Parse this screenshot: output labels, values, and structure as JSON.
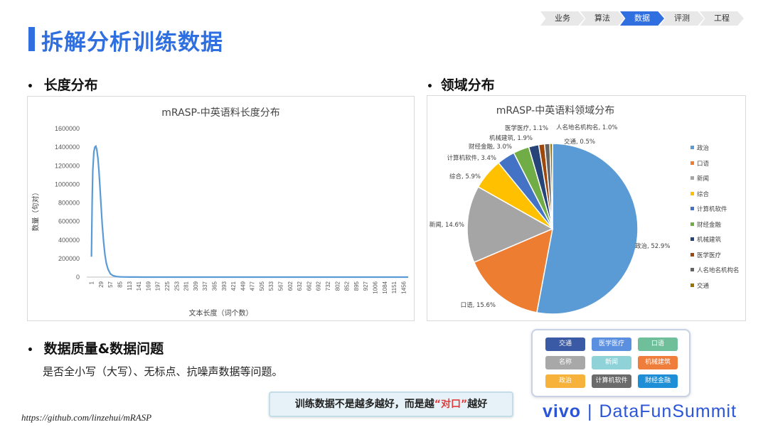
{
  "breadcrumbs": [
    {
      "label": "业务",
      "active": false
    },
    {
      "label": "算法",
      "active": false
    },
    {
      "label": "数据",
      "active": true
    },
    {
      "label": "评测",
      "active": false
    },
    {
      "label": "工程",
      "active": false
    }
  ],
  "title": "拆解分析训练数据",
  "sections": {
    "length": "长度分布",
    "domain": "领域分布",
    "quality": "数据质量&数据问题",
    "quality_body": "是否全小写（大写）、无标点、抗噪声数据等问题。"
  },
  "colors": {
    "accent": "#2f6fe0",
    "crumb_active": "#2f6fe0",
    "crumb_inactive": "#e8e8e8"
  },
  "chart_data": [
    {
      "type": "line",
      "title": "mRASP-中英语料长度分布",
      "xlabel": "文本长度（词个数）",
      "ylabel": "数量（句对）",
      "ylim": [
        0,
        1600000
      ],
      "yticks": [
        "1600000",
        "1400000",
        "1200000",
        "1000000",
        "800000",
        "600000",
        "400000",
        "200000",
        "0"
      ],
      "xticks": [
        "1",
        "29",
        "57",
        "85",
        "113",
        "141",
        "169",
        "197",
        "225",
        "253",
        "281",
        "309",
        "337",
        "365",
        "393",
        "421",
        "449",
        "477",
        "505",
        "533",
        "567",
        "602",
        "632",
        "662",
        "692",
        "732",
        "802",
        "852",
        "895",
        "927",
        "1006",
        "1084",
        "1151",
        "1456"
      ],
      "series": [
        {
          "x": [
            1,
            3,
            5,
            8,
            11,
            14,
            17,
            20,
            23,
            26,
            29,
            33,
            37,
            41,
            45,
            50,
            57,
            65,
            75,
            85,
            100,
            113,
            130,
            150,
            200,
            300,
            1456
          ],
          "values": [
            220000,
            820000,
            1150000,
            1350000,
            1400000,
            1410000,
            1370000,
            1280000,
            1150000,
            980000,
            800000,
            560000,
            380000,
            240000,
            150000,
            85000,
            35000,
            15000,
            6000,
            3000,
            1500,
            800,
            400,
            200,
            100,
            50,
            0
          ]
        }
      ]
    },
    {
      "type": "pie",
      "title": "mRASP-中英语料领域分布",
      "categories": [
        "政治",
        "口语",
        "新闻",
        "综合",
        "计算机软件",
        "财经金融",
        "机械建筑",
        "医学医疗",
        "人名地名机构名",
        "交通"
      ],
      "values": [
        52.9,
        15.6,
        14.6,
        5.9,
        3.4,
        3.0,
        1.9,
        1.1,
        1.0,
        0.5
      ],
      "labels": [
        "政治, 52.9%",
        "口语, 15.6%",
        "新闻, 14.6%",
        "综合, 5.9%",
        "计算机软件, 3.4%",
        "财经金融, 3.0%",
        "机械建筑, 1.9%",
        "医学医疗, 1.1%",
        "人名地名机构名, 1.0%",
        "交通, 0.5%"
      ],
      "colors": [
        "#5b9bd5",
        "#ed7d31",
        "#a5a5a5",
        "#ffc000",
        "#4472c4",
        "#70ad47",
        "#264478",
        "#9e480e",
        "#636363",
        "#997300"
      ],
      "legend": "right"
    }
  ],
  "tags": [
    {
      "label": "交通",
      "color": "#3b5aa6"
    },
    {
      "label": "医学医疗",
      "color": "#5b8fe0"
    },
    {
      "label": "口语",
      "color": "#6fbf9a"
    },
    {
      "label": "名称",
      "color": "#a8a8a8"
    },
    {
      "label": "新闻",
      "color": "#8fd3d8"
    },
    {
      "label": "机械建筑",
      "color": "#ef7d3b"
    },
    {
      "label": "政治",
      "color": "#f6b23a"
    },
    {
      "label": "计算机软件",
      "color": "#6b6b6b"
    },
    {
      "label": "财经金融",
      "color": "#1e8fd6"
    }
  ],
  "callout": {
    "before": "训练数据不是越多越好，而是越",
    "highlight": "“对口”",
    "after": "越好",
    "highlight_color": "#e23b3b"
  },
  "footer": {
    "url": "https://github.com/linzehui/mRASP",
    "brand_vivo": "vivo",
    "brand_sep": "|",
    "brand_name": "DataFunSummit"
  }
}
